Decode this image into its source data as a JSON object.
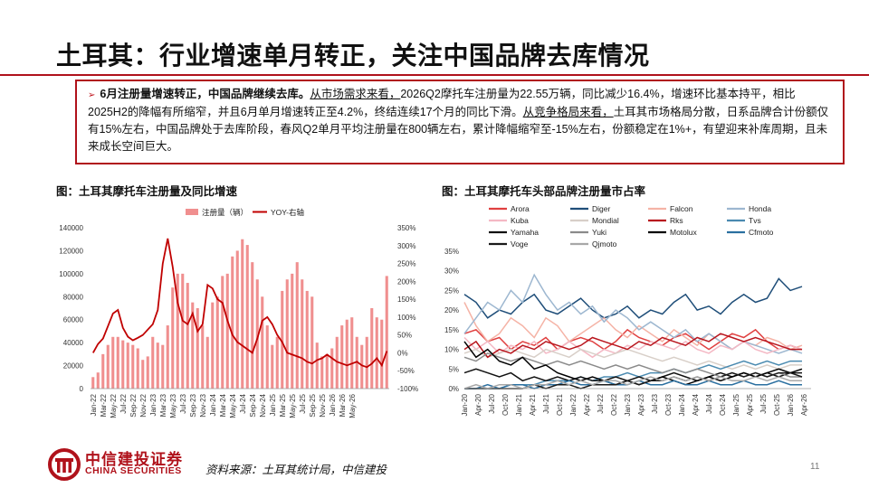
{
  "title": "土耳其：行业增速单月转正，关注中国品牌去库情况",
  "summary": {
    "bullet": "➢",
    "lead": "6月注册量增速转正，中国品牌继续去库。",
    "u1": "从市场需求来看，",
    "t1": "2026Q2摩托车注册量为22.55万辆，同比减少16.4%，增速环比基本持平，相比2025H2的降幅有所缩窄，并且6月单月增速转正至4.2%，终结连续17个月的同比下滑。",
    "u2": "从竞争格局来看，",
    "t2": "土耳其市场格局分散，日系品牌合计份额仅有15%左右，中国品牌处于去库阶段，春风Q2单月平均注册量在800辆左右，累计降幅缩窄至-15%左右，份额稳定在1%+，有望迎来补库周期，且未来成长空间巨大。"
  },
  "footer": {
    "brand_cn": "中信建投证券",
    "brand_en": "CHINA SECURITIES",
    "source": "资料来源：土耳其统计局，中信建投",
    "page": "11"
  },
  "colors": {
    "accent": "#b0121b",
    "bar": "#f08f8f",
    "line": "#c00000"
  },
  "chart_data": [
    {
      "type": "bar",
      "title": "图：土耳其摩托车注册量及同比增速",
      "legend": [
        "注册量（辆）",
        "YOY-右轴"
      ],
      "legend_position": "top",
      "grid": false,
      "ylim": [
        0,
        140000
      ],
      "y2lim": [
        -1.0,
        3.5
      ],
      "yticks": [
        "0",
        "20000",
        "40000",
        "60000",
        "80000",
        "100000",
        "120000",
        "140000"
      ],
      "y2ticks": [
        "-100%",
        "-50%",
        "0%",
        "50%",
        "100%",
        "150%",
        "200%",
        "250%",
        "300%",
        "350%"
      ],
      "xticks": [
        "Jan-22",
        "Mar-22",
        "May-22",
        "Jul-22",
        "Sep-22",
        "Nov-22",
        "Jan-23",
        "Mar-23",
        "May-23",
        "Jul-23",
        "Sep-23",
        "Nov-23",
        "Jan-24",
        "Mar-24",
        "May-24",
        "Jul-24",
        "Sep-24",
        "Nov-24",
        "Jan-25",
        "Mar-25",
        "May-25",
        "Jul-25",
        "Sep-25",
        "Nov-25",
        "Jan-26",
        "Mar-26",
        "May-26"
      ],
      "series": [
        {
          "name": "注册量（辆）",
          "axis": "left",
          "values": [
            10000,
            14000,
            30000,
            38000,
            45000,
            45000,
            42000,
            40000,
            38000,
            35000,
            25000,
            28000,
            45000,
            40000,
            38000,
            55000,
            88000,
            100000,
            100000,
            92000,
            75000,
            70000,
            55000,
            45000,
            75000,
            80000,
            98000,
            100000,
            115000,
            120000,
            130000,
            125000,
            110000,
            95000,
            80000,
            55000,
            38000,
            45000,
            85000,
            95000,
            100000,
            110000,
            95000,
            85000,
            80000,
            40000,
            28000,
            30000,
            35000,
            45000,
            55000,
            60000,
            62000,
            45000,
            38000,
            45000,
            70000,
            62000,
            60000,
            98000
          ]
        },
        {
          "name": "YOY-右轴",
          "axis": "right",
          "values": [
            0,
            0.25,
            0.4,
            0.75,
            1.1,
            1.2,
            0.7,
            0.45,
            0.35,
            0.42,
            0.5,
            0.65,
            0.8,
            1.2,
            2.5,
            3.2,
            2.4,
            1.4,
            0.9,
            0.8,
            1.1,
            0.6,
            0.8,
            1.9,
            1.8,
            1.5,
            1.4,
            0.9,
            0.5,
            0.3,
            0.2,
            0.1,
            0,
            0.4,
            0.9,
            1.0,
            0.8,
            0.5,
            0.3,
            0,
            -0.05,
            -0.1,
            -0.15,
            -0.25,
            -0.3,
            -0.2,
            -0.15,
            -0.05,
            -0.15,
            -0.25,
            -0.3,
            -0.35,
            -0.3,
            -0.25,
            -0.35,
            -0.4,
            -0.3,
            -0.15,
            -0.35,
            0.05
          ]
        }
      ]
    },
    {
      "type": "line",
      "title": "图：土耳其摩托车头部品牌注册量市占率",
      "legend_position": "top",
      "grid": false,
      "ylim": [
        0,
        0.35
      ],
      "yticks": [
        "0%",
        "5%",
        "10%",
        "15%",
        "20%",
        "25%",
        "30%",
        "35%"
      ],
      "xticks": [
        "Jan-20",
        "Apr-20",
        "Jul-20",
        "Oct-20",
        "Jan-21",
        "Apr-21",
        "Jul-21",
        "Oct-21",
        "Jan-22",
        "Apr-22",
        "Jul-22",
        "Oct-22",
        "Jan-23",
        "Apr-23",
        "Jul-23",
        "Oct-23",
        "Jan-24",
        "Apr-24",
        "Jul-24",
        "Oct-24",
        "Jan-25",
        "Apr-25",
        "Jul-25",
        "Oct-25",
        "Jan-26",
        "Apr-26"
      ],
      "series": [
        {
          "name": "Arora",
          "color": "#e04040",
          "values": [
            0.14,
            0.15,
            0.12,
            0.13,
            0.1,
            0.12,
            0.11,
            0.13,
            0.1,
            0.12,
            0.13,
            0.12,
            0.1,
            0.12,
            0.15,
            0.13,
            0.12,
            0.11,
            0.13,
            0.14,
            0.12,
            0.1,
            0.12,
            0.14,
            0.13,
            0.15,
            0.12,
            0.1,
            0.11,
            0.1
          ]
        },
        {
          "name": "Diger",
          "color": "#1f4e79",
          "values": [
            0.24,
            0.22,
            0.18,
            0.2,
            0.19,
            0.22,
            0.24,
            0.2,
            0.19,
            0.21,
            0.23,
            0.2,
            0.18,
            0.19,
            0.21,
            0.18,
            0.2,
            0.19,
            0.22,
            0.24,
            0.2,
            0.21,
            0.19,
            0.22,
            0.24,
            0.22,
            0.23,
            0.28,
            0.25,
            0.26
          ]
        },
        {
          "name": "Falcon",
          "color": "#f5b3a6",
          "values": [
            0.22,
            0.16,
            0.12,
            0.14,
            0.18,
            0.16,
            0.13,
            0.18,
            0.16,
            0.12,
            0.14,
            0.16,
            0.18,
            0.15,
            0.13,
            0.16,
            0.14,
            0.12,
            0.15,
            0.13,
            0.11,
            0.14,
            0.12,
            0.1,
            0.12,
            0.11,
            0.13,
            0.12,
            0.1,
            0.11
          ]
        },
        {
          "name": "Honda",
          "color": "#9db7d0",
          "values": [
            0.14,
            0.18,
            0.22,
            0.2,
            0.25,
            0.22,
            0.29,
            0.24,
            0.2,
            0.22,
            0.19,
            0.21,
            0.17,
            0.2,
            0.18,
            0.15,
            0.17,
            0.15,
            0.13,
            0.15,
            0.12,
            0.14,
            0.12,
            0.1,
            0.12,
            0.11,
            0.1,
            0.09,
            0.1,
            0.09
          ]
        },
        {
          "name": "Kuba",
          "color": "#f4b8c4",
          "values": [
            0.13,
            0.1,
            0.12,
            0.09,
            0.11,
            0.1,
            0.12,
            0.09,
            0.1,
            0.12,
            0.1,
            0.08,
            0.1,
            0.09,
            0.11,
            0.1,
            0.12,
            0.11,
            0.1,
            0.12,
            0.1,
            0.09,
            0.11,
            0.1,
            0.12,
            0.1,
            0.09,
            0.1,
            0.11,
            0.1
          ]
        },
        {
          "name": "Mondial",
          "color": "#d8cfc8",
          "values": [
            0.09,
            0.1,
            0.08,
            0.09,
            0.1,
            0.09,
            0.08,
            0.1,
            0.09,
            0.08,
            0.1,
            0.09,
            0.08,
            0.09,
            0.1,
            0.09,
            0.08,
            0.07,
            0.08,
            0.07,
            0.06,
            0.07,
            0.06,
            0.05,
            0.06,
            0.05,
            0.06,
            0.05,
            0.06,
            0.06
          ]
        },
        {
          "name": "Rks",
          "color": "#b8161e",
          "values": [
            0.1,
            0.12,
            0.08,
            0.1,
            0.09,
            0.11,
            0.1,
            0.12,
            0.11,
            0.1,
            0.11,
            0.13,
            0.12,
            0.11,
            0.1,
            0.12,
            0.11,
            0.13,
            0.12,
            0.11,
            0.13,
            0.12,
            0.14,
            0.13,
            0.12,
            0.13,
            0.12,
            0.11,
            0.1,
            0.1
          ]
        },
        {
          "name": "Tvs",
          "color": "#4a8ab0",
          "values": [
            0.0,
            0.0,
            0.0,
            0.0,
            0.01,
            0.01,
            0.01,
            0.02,
            0.02,
            0.02,
            0.03,
            0.02,
            0.03,
            0.03,
            0.04,
            0.03,
            0.04,
            0.04,
            0.05,
            0.04,
            0.05,
            0.06,
            0.05,
            0.06,
            0.07,
            0.06,
            0.07,
            0.06,
            0.07,
            0.07
          ]
        },
        {
          "name": "Yamaha",
          "color": "#111111",
          "values": [
            0.04,
            0.05,
            0.04,
            0.03,
            0.04,
            0.02,
            0.03,
            0.02,
            0.03,
            0.02,
            0.03,
            0.02,
            0.02,
            0.03,
            0.02,
            0.03,
            0.02,
            0.03,
            0.04,
            0.03,
            0.02,
            0.03,
            0.04,
            0.03,
            0.04,
            0.03,
            0.04,
            0.03,
            0.04,
            0.04
          ]
        },
        {
          "name": "Yuki",
          "color": "#8a8a8a",
          "values": [
            0.08,
            0.07,
            0.09,
            0.08,
            0.07,
            0.08,
            0.07,
            0.06,
            0.07,
            0.06,
            0.07,
            0.06,
            0.05,
            0.06,
            0.05,
            0.06,
            0.05,
            0.04,
            0.05,
            0.04,
            0.05,
            0.04,
            0.03,
            0.04,
            0.03,
            0.04,
            0.03,
            0.04,
            0.03,
            0.03
          ]
        },
        {
          "name": "Motolux",
          "color": "#000000",
          "values": [
            0.12,
            0.08,
            0.1,
            0.07,
            0.06,
            0.08,
            0.05,
            0.06,
            0.04,
            0.03,
            0.02,
            0.03,
            0.02,
            0.01,
            0.02,
            0.01,
            0.02,
            0.03,
            0.02,
            0.01,
            0.02,
            0.03,
            0.02,
            0.03,
            0.04,
            0.03,
            0.04,
            0.05,
            0.04,
            0.05
          ]
        },
        {
          "name": "Cfmoto",
          "color": "#2a6fa0",
          "values": [
            0.0,
            0.0,
            0.01,
            0.0,
            0.01,
            0.01,
            0.0,
            0.01,
            0.01,
            0.02,
            0.01,
            0.01,
            0.02,
            0.01,
            0.01,
            0.02,
            0.01,
            0.01,
            0.02,
            0.01,
            0.01,
            0.02,
            0.01,
            0.01,
            0.02,
            0.01,
            0.01,
            0.02,
            0.01,
            0.01
          ]
        },
        {
          "name": "Voge",
          "color": "#1a1a1a",
          "values": [
            0.0,
            0.0,
            0.0,
            0.0,
            0.0,
            0.0,
            0.01,
            0.0,
            0.01,
            0.01,
            0.0,
            0.01,
            0.01,
            0.01,
            0.02,
            0.01,
            0.02,
            0.02,
            0.03,
            0.02,
            0.03,
            0.02,
            0.03,
            0.04,
            0.03,
            0.04,
            0.03,
            0.04,
            0.04,
            0.03
          ]
        },
        {
          "name": "Qjmoto",
          "color": "#a8a8a8",
          "values": [
            0.0,
            0.01,
            0.0,
            0.01,
            0.01,
            0.0,
            0.01,
            0.01,
            0.02,
            0.01,
            0.02,
            0.01,
            0.02,
            0.02,
            0.01,
            0.02,
            0.03,
            0.02,
            0.03,
            0.02,
            0.03,
            0.02,
            0.03,
            0.02,
            0.02,
            0.03,
            0.02,
            0.03,
            0.02,
            0.02
          ]
        }
      ]
    }
  ]
}
